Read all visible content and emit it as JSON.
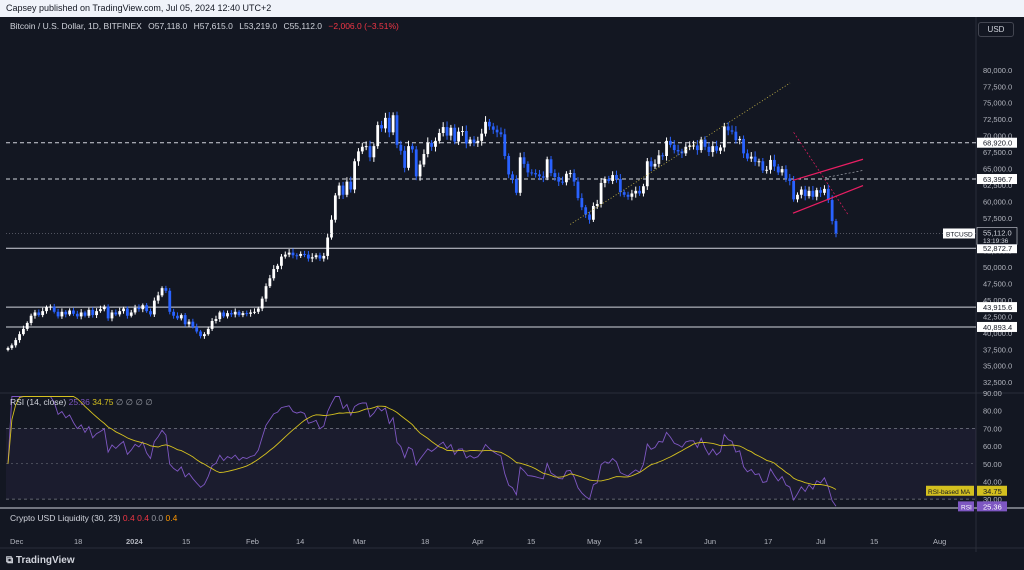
{
  "publish_line": "Capsey published on TradingView.com, Jul 05, 2024 12:40 UTC+2",
  "header": {
    "symbol": "Bitcoin / U.S. Dollar, 1D, BITFINEX",
    "open": "O57,118.0",
    "high": "H57,615.0",
    "low": "L53,219.0",
    "close": "C55,112.0",
    "change": "−2,006.0 (−3.51%)"
  },
  "currency_button": "USD",
  "footer_logo": "TradingView",
  "colors": {
    "up": "#ffffff",
    "down": "#2962ff",
    "rsi": "#7e57c2",
    "rsi_ma": "#d4c01f",
    "channel": "#e91e63"
  },
  "chart_data": [
    {
      "type": "candlestick",
      "symbol": "BTCUSD",
      "last_price": "55,112.0",
      "countdown": "13:19:36",
      "price_labels": [
        "68,920.0",
        "63,396.7",
        "52,872.7",
        "43,915.6",
        "40,893.4"
      ],
      "horizontal_levels": [
        68920,
        63396.7,
        52872.7,
        43915.6,
        40893.4
      ],
      "ylim": [
        31000,
        85000
      ],
      "yticks": [
        "32,500.0",
        "35,000.0",
        "37,500.0",
        "40,000.0",
        "42,500.0",
        "45,000.0",
        "47,500.0",
        "50,000.0",
        "52,500.0",
        "55,000.0",
        "57,500.0",
        "60,000.0",
        "62,500.0",
        "65,000.0",
        "67,500.0",
        "70,000.0",
        "72,500.0",
        "75,000.0",
        "77,500.0",
        "80,000.0"
      ],
      "ytick_values": [
        32500,
        35000,
        37500,
        40000,
        42500,
        45000,
        47500,
        50000,
        52500,
        55000,
        57500,
        60000,
        62500,
        65000,
        67500,
        70000,
        72500,
        75000,
        77500,
        80000
      ],
      "xticks": [
        "Dec",
        "18",
        "2024",
        "15",
        "Feb",
        "14",
        "Mar",
        "18",
        "Apr",
        "15",
        "May",
        "14",
        "Jun",
        "17",
        "Jul",
        "15",
        "Aug"
      ],
      "closes": [
        37700,
        38100,
        38900,
        39800,
        40600,
        41500,
        42600,
        43100,
        42700,
        43300,
        43900,
        44000,
        43200,
        42500,
        43200,
        42800,
        43400,
        42900,
        42500,
        43100,
        42600,
        43500,
        42700,
        43300,
        43600,
        44000,
        42200,
        43100,
        42800,
        43300,
        43700,
        42600,
        43100,
        43800,
        43600,
        44200,
        43300,
        42800,
        44900,
        45700,
        46800,
        46400,
        43200,
        42600,
        42200,
        42700,
        41300,
        41700,
        40900,
        40200,
        39500,
        39800,
        40600,
        41800,
        42100,
        43100,
        42500,
        43000,
        42800,
        43200,
        42700,
        43000,
        42900,
        43100,
        43200,
        43700,
        45200,
        47100,
        48300,
        49700,
        50200,
        51600,
        51900,
        52200,
        51800,
        51700,
        52000,
        51900,
        51300,
        51500,
        51800,
        51300,
        51700,
        54500,
        57200,
        60900,
        62400,
        61000,
        63000,
        61800,
        66100,
        67600,
        68300,
        68400,
        66700,
        68400,
        71600,
        71100,
        72700,
        70500,
        73100,
        68600,
        67700,
        65100,
        68400,
        67900,
        63800,
        65600,
        67200,
        68900,
        68300,
        69200,
        70400,
        71300,
        70000,
        71200,
        69100,
        70600,
        70700,
        68800,
        69400,
        68900,
        69200,
        70300,
        72100,
        71400,
        70900,
        70500,
        70200,
        66900,
        64100,
        63400,
        61300,
        66700,
        65700,
        64400,
        64300,
        64100,
        63800,
        63600,
        66400,
        64300,
        63700,
        63000,
        62900,
        64200,
        64300,
        63000,
        60500,
        59100,
        58000,
        57200,
        59300,
        59600,
        62800,
        63400,
        63100,
        64000,
        63400,
        61400,
        61000,
        60700,
        61200,
        61600,
        61200,
        62300,
        66100,
        65300,
        65700,
        67000,
        66900,
        69200,
        68600,
        67800,
        67600,
        67300,
        68300,
        68500,
        68500,
        67800,
        69400,
        68300,
        67500,
        68400,
        67700,
        68200,
        71400,
        70800,
        70600,
        69300,
        69500,
        67300,
        66500,
        66800,
        66000,
        66100,
        64700,
        64800,
        66300,
        65300,
        64400,
        64900,
        63500,
        63100,
        60300,
        61000,
        61800,
        60800,
        61600,
        60700,
        61700,
        61300,
        61900,
        60200,
        57000,
        55112
      ]
    },
    {
      "type": "line",
      "title": "RSI (14, close)",
      "value": "25.36",
      "ma_value": "34.75",
      "header_extra": "∅ ∅ ∅ ∅",
      "ma_label": "RSI-based MA",
      "value_label": "RSI",
      "ylim": [
        25,
        90
      ],
      "yticks": [
        "30.00",
        "40.00",
        "50.00",
        "60.00",
        "70.00",
        "80.00",
        "90.00"
      ],
      "ytick_values": [
        30,
        40,
        50,
        60,
        70,
        80,
        90
      ]
    },
    {
      "type": "line",
      "title": "Crypto USD Liquidity (30, 23)",
      "values": [
        "0.4",
        "0.4",
        "0.0",
        "0.4"
      ]
    }
  ]
}
